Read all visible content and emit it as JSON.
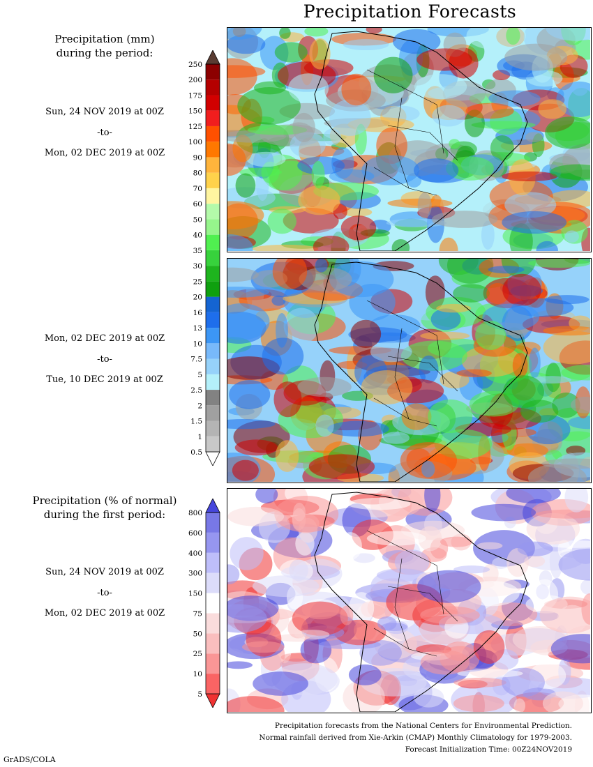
{
  "title": "Precipitation Forecasts",
  "left": {
    "header1": [
      "Precipitation (mm)",
      "during the period:"
    ],
    "period1": {
      "start": "Sun, 24 NOV 2019 at 00Z",
      "sep": "-to-",
      "end": "Mon, 02 DEC 2019 at 00Z"
    },
    "period2": {
      "start": "Mon, 02 DEC 2019 at 00Z",
      "sep": "-to-",
      "end": "Tue, 10 DEC 2019 at 00Z"
    },
    "header2": [
      "Precipitation (% of normal)",
      "during the first period:"
    ],
    "period3": {
      "start": "Sun, 24 NOV 2019 at 00Z",
      "sep": "-to-",
      "end": "Mon, 02 DEC 2019 at 00Z"
    }
  },
  "footer": {
    "line1": "Precipitation forecasts from the National Centers for Environmental Prediction.",
    "line2": "Normal rainfall derived from Xie-Arkin (CMAP) Monthly Climatology for 1979-2003.",
    "line3": "Forecast Initialization Time: 00Z24NOV2019"
  },
  "credit": "GrADS/COLA",
  "chart_data": [
    {
      "type": "heatmap",
      "title": "Precipitation (mm)",
      "period": "Sun, 24 NOV 2019 at 00Z -to- Mon, 02 DEC 2019 at 00Z",
      "colorbar_levels": [
        "0.5",
        "1",
        "1.5",
        "2",
        "2.5",
        "5",
        "7.5",
        "10",
        "13",
        "16",
        "20",
        "25",
        "30",
        "35",
        "40",
        "50",
        "60",
        "70",
        "80",
        "90",
        "100",
        "125",
        "150",
        "175",
        "200",
        "250"
      ],
      "colorbar_colors": [
        "#ffffff",
        "#c8c8c8",
        "#b4b4b4",
        "#a0a0a0",
        "#828282",
        "#b4f0fa",
        "#96d2fa",
        "#78b9fa",
        "#3c96f5",
        "#1e6eeb",
        "#1464d2",
        "#0fa00f",
        "#1eb41e",
        "#37d23c",
        "#50f050",
        "#96f58c",
        "#b4faaa",
        "#fff5a0",
        "#ffd24b",
        "#ffb43c",
        "#ff7800",
        "#ff5000",
        "#f01e1e",
        "#d20000",
        "#b40000",
        "#8c0000",
        "#5a3c32"
      ]
    },
    {
      "type": "heatmap",
      "title": "Precipitation (mm)",
      "period": "Mon, 02 DEC 2019 at 00Z -to- Tue, 10 DEC 2019 at 00Z"
    },
    {
      "type": "heatmap",
      "title": "Precipitation (% of normal)",
      "period": "Sun, 24 NOV 2019 at 00Z -to- Mon, 02 DEC 2019 at 00Z",
      "colorbar_levels": [
        "5",
        "10",
        "25",
        "50",
        "75",
        "150",
        "300",
        "400",
        "600",
        "800"
      ],
      "colorbar_colors": [
        "#f03232",
        "#fa6464",
        "#fa9696",
        "#fabebe",
        "#fadcdc",
        "#ffffff",
        "#dcdcfa",
        "#bebefa",
        "#9696f0",
        "#7878e6",
        "#4646dc"
      ]
    }
  ]
}
